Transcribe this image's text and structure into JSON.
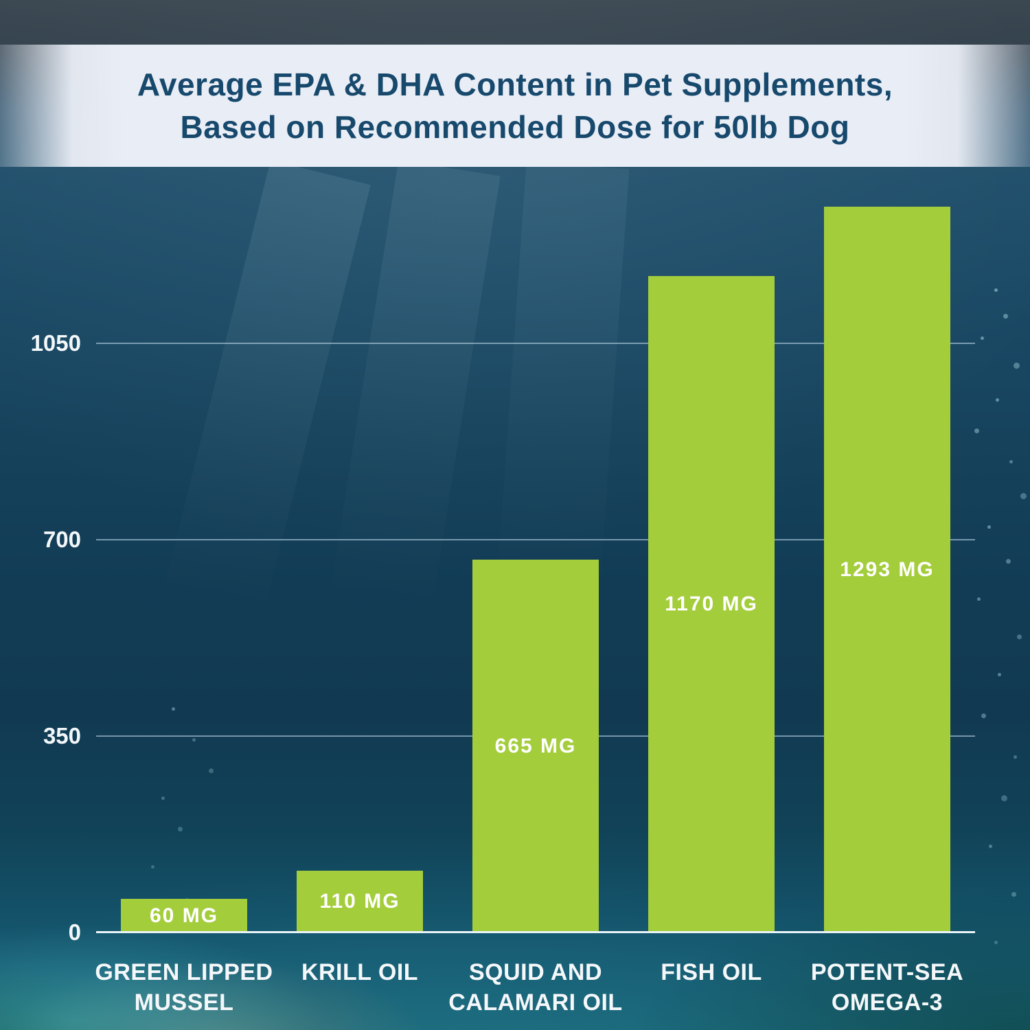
{
  "banner": {
    "title_line1": "Average EPA & DHA Content in Pet Supplements,",
    "title_line2": "Based on Recommended Dose for 50lb Dog"
  },
  "chart_data": {
    "type": "bar",
    "title": "Average EPA & DHA Content in Pet Supplements, Based on Recommended Dose for 50lb Dog",
    "categories": [
      "GREEN LIPPED\nMUSSEL",
      "KRILL OIL",
      "SQUID AND\nCALAMARI OIL",
      "FISH OIL",
      "POTENT-SEA\nOMEGA-3"
    ],
    "values": [
      60,
      110,
      665,
      1170,
      1293
    ],
    "bar_labels": [
      "60 MG",
      "110 MG",
      "665 MG",
      "1170 MG",
      "1293 MG"
    ],
    "unit": "mg",
    "xlabel": "",
    "ylabel": "",
    "yticks": [
      0,
      350,
      700,
      1050
    ],
    "ytick_labels": [
      "0",
      "350",
      "700",
      "1050"
    ],
    "ylim": [
      0,
      1400
    ],
    "grid": true,
    "legend": "none",
    "bar_color": "#a4cd3c",
    "value_label_position": "inside-center"
  },
  "colors": {
    "bar_green": "#a4cd3c",
    "title_navy": "#17496d",
    "banner_bg": "#e9edf5",
    "axis_text": "#f2f7fa",
    "ocean_deep": "#123c55"
  }
}
